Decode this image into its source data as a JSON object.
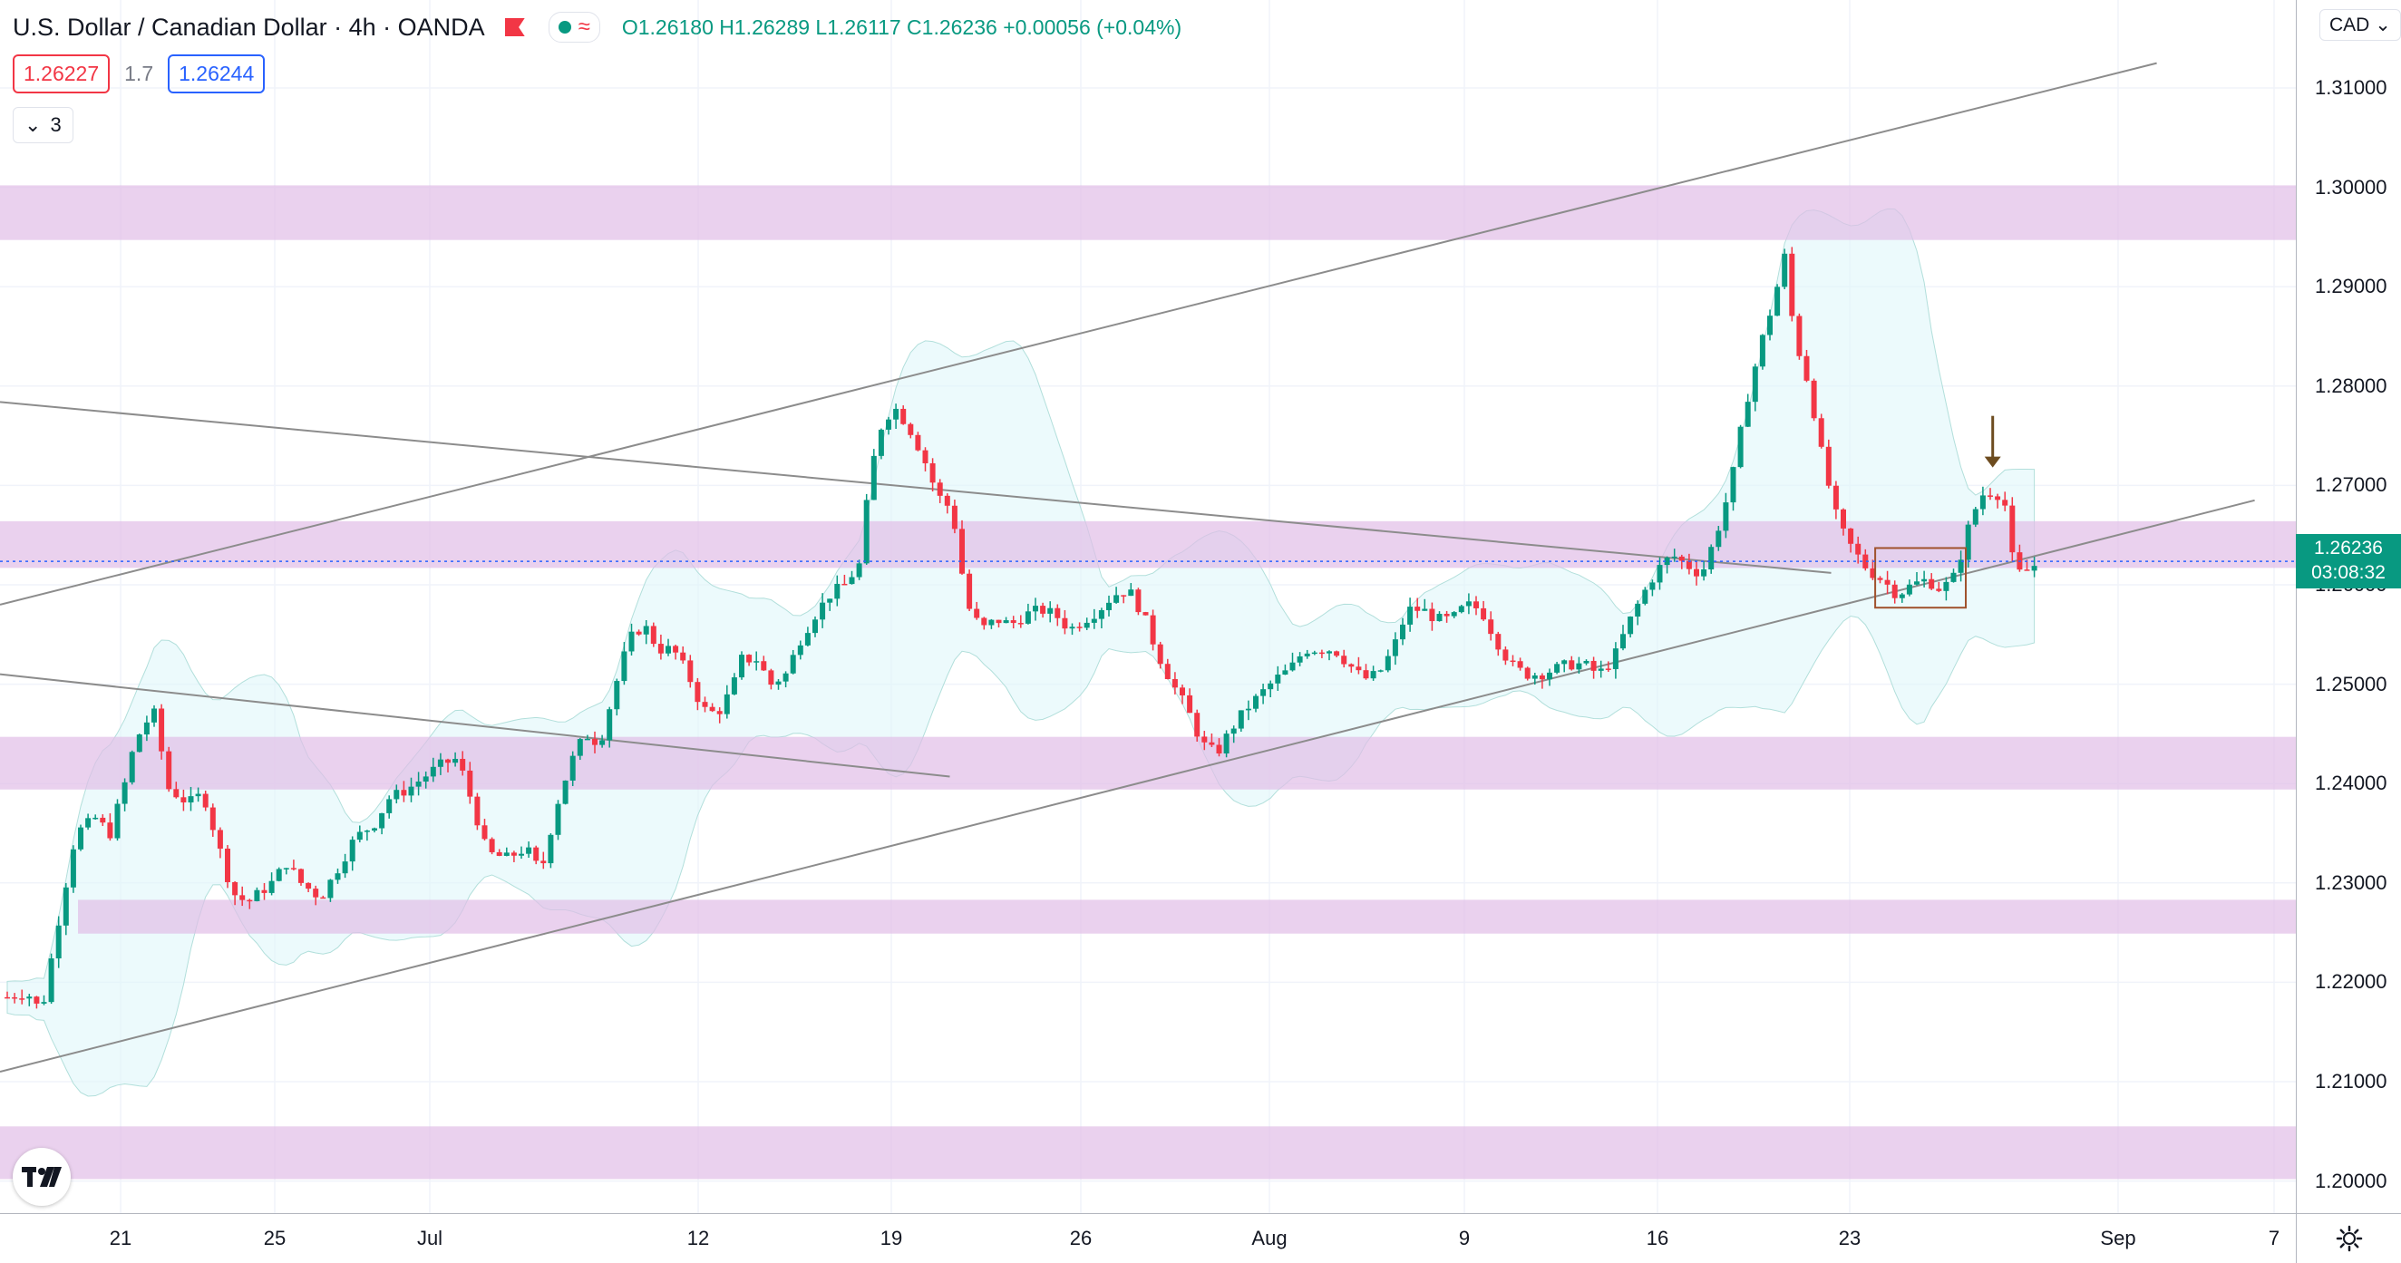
{
  "header": {
    "title": "U.S. Dollar / Canadian Dollar · 4h · OANDA",
    "open": "O1.26180",
    "high": "H1.26289",
    "low": "L1.26117",
    "close": "C1.26236",
    "change": "+0.00056 (+0.04%)",
    "sell_price": "1.26227",
    "spread": "1.7",
    "buy_price": "1.26244",
    "indicators_count": "3",
    "currency": "CAD"
  },
  "price_tag": {
    "price": "1.26236",
    "countdown": "03:08:32"
  },
  "icons": {
    "flag": "flag-icon",
    "visibility": "eye-dot-icon",
    "wave": "wave-icon",
    "chevron": "chevron-down-icon",
    "settings": "gear-icon",
    "logo": "tradingview-logo"
  },
  "colors": {
    "up": "#089981",
    "down": "#f23645",
    "zone": "#e1bee7",
    "band": "#e0f7fa",
    "trend": "#8c8c8c",
    "arrow": "#6d4c1f",
    "box": "#a0522d"
  },
  "chart_data": {
    "type": "candlestick",
    "title": "U.S. Dollar / Canadian Dollar",
    "timeframe": "4h",
    "ylim": [
      1.195,
      1.3195
    ],
    "yticks": [
      "1.31000",
      "1.30000",
      "1.29000",
      "1.28000",
      "1.27000",
      "1.26000",
      "1.25000",
      "1.24000",
      "1.23000",
      "1.22000",
      "1.21000",
      "1.20000"
    ],
    "xticks": [
      "21",
      "25",
      "Jul",
      "12",
      "19",
      "26",
      "Aug",
      "9",
      "16",
      "23",
      "Sep",
      "7"
    ],
    "grid": true,
    "close_path": [
      [
        0,
        1.2185
      ],
      [
        8,
        1.219
      ],
      [
        14,
        1.217
      ],
      [
        20,
        1.225
      ],
      [
        28,
        1.235
      ],
      [
        36,
        1.2365
      ],
      [
        42,
        1.235
      ],
      [
        48,
        1.24
      ],
      [
        52,
        1.244
      ],
      [
        56,
        1.246
      ],
      [
        60,
        1.247
      ],
      [
        66,
        1.2395
      ],
      [
        74,
        1.238
      ],
      [
        80,
        1.239
      ],
      [
        86,
        1.234
      ],
      [
        92,
        1.229
      ],
      [
        98,
        1.228
      ],
      [
        108,
        1.23
      ],
      [
        114,
        1.232
      ],
      [
        120,
        1.23
      ],
      [
        128,
        1.2285
      ],
      [
        134,
        1.231
      ],
      [
        142,
        1.2345
      ],
      [
        150,
        1.236
      ],
      [
        156,
        1.2385
      ],
      [
        164,
        1.2395
      ],
      [
        172,
        1.241
      ],
      [
        178,
        1.242
      ],
      [
        184,
        1.2425
      ],
      [
        190,
        1.238
      ],
      [
        196,
        1.233
      ],
      [
        204,
        1.2325
      ],
      [
        212,
        1.2335
      ],
      [
        218,
        1.231
      ],
      [
        224,
        1.2375
      ],
      [
        230,
        1.242
      ],
      [
        236,
        1.245
      ],
      [
        242,
        1.244
      ],
      [
        248,
        1.2495
      ],
      [
        254,
        1.2545
      ],
      [
        260,
        1.256
      ],
      [
        266,
        1.2535
      ],
      [
        272,
        1.2535
      ],
      [
        278,
        1.251
      ],
      [
        284,
        1.2475
      ],
      [
        290,
        1.247
      ],
      [
        296,
        1.2495
      ],
      [
        300,
        1.2525
      ],
      [
        306,
        1.2525
      ],
      [
        312,
        1.25
      ],
      [
        318,
        1.251
      ],
      [
        324,
        1.2545
      ],
      [
        330,
        1.257
      ],
      [
        336,
        1.259
      ],
      [
        342,
        1.26
      ],
      [
        348,
        1.262
      ],
      [
        352,
        1.27
      ],
      [
        356,
        1.2755
      ],
      [
        362,
        1.278
      ],
      [
        368,
        1.276
      ],
      [
        374,
        1.273
      ],
      [
        380,
        1.269
      ],
      [
        386,
        1.2675
      ],
      [
        392,
        1.258
      ],
      [
        398,
        1.2555
      ],
      [
        404,
        1.2565
      ],
      [
        410,
        1.256
      ],
      [
        416,
        1.257
      ],
      [
        422,
        1.2575
      ],
      [
        428,
        1.257
      ],
      [
        434,
        1.2555
      ],
      [
        440,
        1.2565
      ],
      [
        446,
        1.2575
      ],
      [
        452,
        1.259
      ],
      [
        458,
        1.2595
      ],
      [
        464,
        1.257
      ],
      [
        470,
        1.253
      ],
      [
        476,
        1.25
      ],
      [
        482,
        1.2475
      ],
      [
        488,
        1.244
      ],
      [
        494,
        1.243
      ],
      [
        500,
        1.2455
      ],
      [
        506,
        1.2475
      ],
      [
        512,
        1.249
      ],
      [
        518,
        1.2505
      ],
      [
        524,
        1.2515
      ],
      [
        530,
        1.2535
      ],
      [
        536,
        1.2535
      ],
      [
        542,
        1.2535
      ],
      [
        548,
        1.252
      ],
      [
        554,
        1.2505
      ],
      [
        560,
        1.251
      ],
      [
        566,
        1.2535
      ],
      [
        572,
        1.2575
      ],
      [
        578,
        1.2575
      ],
      [
        584,
        1.2565
      ],
      [
        590,
        1.2565
      ],
      [
        596,
        1.258
      ],
      [
        602,
        1.2575
      ],
      [
        608,
        1.2545
      ],
      [
        614,
        1.252
      ],
      [
        620,
        1.251
      ],
      [
        626,
        1.251
      ],
      [
        632,
        1.2515
      ],
      [
        638,
        1.252
      ],
      [
        644,
        1.252
      ],
      [
        650,
        1.251
      ],
      [
        656,
        1.2525
      ],
      [
        662,
        1.256
      ],
      [
        668,
        1.259
      ],
      [
        674,
        1.2615
      ],
      [
        680,
        1.263
      ],
      [
        686,
        1.262
      ],
      [
        692,
        1.261
      ],
      [
        698,
        1.265
      ],
      [
        704,
        1.27
      ],
      [
        710,
        1.278
      ],
      [
        716,
        1.284
      ],
      [
        722,
        1.289
      ],
      [
        726,
        1.293
      ],
      [
        730,
        1.285
      ],
      [
        736,
        1.28
      ],
      [
        742,
        1.272
      ],
      [
        748,
        1.266
      ],
      [
        754,
        1.2635
      ],
      [
        760,
        1.2615
      ],
      [
        766,
        1.2605
      ],
      [
        772,
        1.259
      ],
      [
        778,
        1.26
      ],
      [
        784,
        1.2605
      ],
      [
        790,
        1.2595
      ],
      [
        796,
        1.261
      ],
      [
        800,
        1.265
      ],
      [
        806,
        1.269
      ],
      [
        812,
        1.2695
      ],
      [
        816,
        1.268
      ],
      [
        820,
        1.261
      ],
      [
        826,
        1.2615
      ],
      [
        830,
        1.2624
      ]
    ],
    "zones": [
      [
        1.2947,
        1.3002
      ],
      [
        1.2617,
        1.2664
      ],
      [
        1.2394,
        1.2447
      ],
      [
        1.2249,
        1.2283
      ],
      [
        1.2002,
        1.2055
      ]
    ],
    "lines": [
      {
        "from": [
          0,
          1.258
        ],
        "to": [
          878,
          1.3125
        ]
      },
      {
        "from": [
          0,
          1.2784
        ],
        "to": [
          745,
          1.2612
        ]
      },
      {
        "from": [
          0,
          1.251
        ],
        "to": [
          385,
          1.2407
        ]
      },
      {
        "from": [
          0,
          1.211
        ],
        "to": [
          918,
          1.2685
        ]
      }
    ],
    "marked_box": {
      "t": [
        763,
        800
      ],
      "price": [
        1.2577,
        1.2637
      ]
    },
    "arrow": {
      "t": 811,
      "price_from": 1.277,
      "price_to": 1.2718
    }
  }
}
